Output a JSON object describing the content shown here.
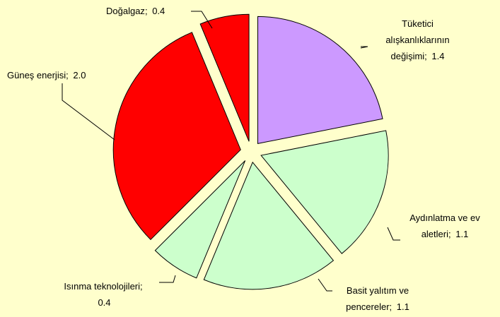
{
  "chart_data": {
    "type": "pie",
    "categories": [
      "Tüketici alışkanlıklarının değişimi",
      "Aydınlatma ve ev aletleri",
      "Basit yalıtım ve pencereler",
      "Isınma teknolojileri",
      "Güneş enerjisi",
      "Doğalgaz"
    ],
    "values": [
      1.4,
      1.1,
      1.1,
      0.4,
      2.0,
      0.4
    ],
    "value_labels": [
      "1.4",
      "1.1",
      "1.1",
      "0.4",
      "2.0",
      "0.4"
    ],
    "label_separator": ";",
    "colors": [
      "#cc99ff",
      "#ccffcc",
      "#ccffcc",
      "#ccffcc",
      "#ff0000",
      "#ff0000"
    ]
  }
}
